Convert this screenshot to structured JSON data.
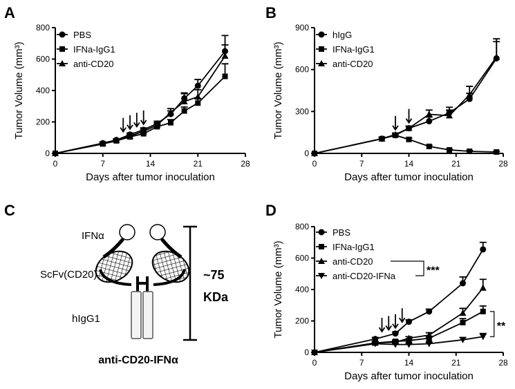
{
  "chart_data": [
    {
      "type": "line",
      "panel_label": "A",
      "x_label": "Days after tumor inoculation",
      "y_label": "Tumor Volume (mm³)",
      "x": [
        0,
        7,
        9,
        11,
        13,
        15,
        17,
        19,
        21,
        25
      ],
      "xlim": [
        0,
        28
      ],
      "xticks": [
        0,
        7,
        14,
        21,
        28
      ],
      "ylim": [
        0,
        800
      ],
      "yticks": [
        0,
        200,
        400,
        600,
        800
      ],
      "dose_days": [
        10,
        11,
        12,
        13
      ],
      "series": [
        {
          "name": "PBS",
          "color": "#000000",
          "marker": "circle",
          "values": [
            0,
            65,
            85,
            120,
            150,
            190,
            250,
            350,
            430,
            650
          ],
          "errors": [
            0,
            8,
            8,
            10,
            12,
            15,
            20,
            35,
            40,
            100
          ]
        },
        {
          "name": "IFNa-IgG1",
          "color": "#000000",
          "marker": "square",
          "values": [
            0,
            60,
            80,
            105,
            125,
            170,
            195,
            270,
            320,
            490
          ],
          "errors": [
            0,
            8,
            8,
            10,
            10,
            15,
            20,
            25,
            30,
            80
          ]
        },
        {
          "name": "anti-CD20",
          "color": "#000000",
          "marker": "triangle-up",
          "values": [
            0,
            65,
            85,
            110,
            140,
            180,
            260,
            330,
            360,
            620
          ],
          "errors": [
            0,
            8,
            8,
            10,
            12,
            15,
            25,
            50,
            45,
            70
          ]
        }
      ]
    },
    {
      "type": "line",
      "panel_label": "B",
      "x_label": "Days after tumor inoculation",
      "y_label": "Tumor Volume (mm³)",
      "x": [
        0,
        10,
        12,
        14,
        17,
        20,
        23,
        27
      ],
      "xlim": [
        0,
        28
      ],
      "xticks": [
        0,
        7,
        14,
        21,
        28
      ],
      "ylim": [
        0,
        900
      ],
      "yticks": [
        0,
        300,
        600,
        900
      ],
      "dose_days": [
        12,
        14
      ],
      "series": [
        {
          "name": "hIgG",
          "color": "#000000",
          "marker": "circle",
          "values": [
            0,
            105,
            130,
            180,
            230,
            290,
            390,
            680
          ],
          "errors": [
            0,
            10,
            10,
            15,
            30,
            40,
            40,
            120
          ]
        },
        {
          "name": "IFNa-IgG1",
          "color": "#000000",
          "marker": "square",
          "values": [
            0,
            105,
            130,
            100,
            50,
            25,
            15,
            10
          ],
          "errors": [
            0,
            10,
            10,
            10,
            8,
            5,
            5,
            5
          ]
        },
        {
          "name": "anti-CD20",
          "color": "#000000",
          "marker": "triangle-up",
          "values": [
            0,
            105,
            135,
            180,
            280,
            270,
            420,
            690
          ],
          "errors": [
            0,
            10,
            10,
            15,
            30,
            40,
            60,
            130
          ]
        }
      ]
    },
    {
      "type": "line",
      "panel_label": "D",
      "x_label": "Days after tumor inoculation",
      "y_label": "Tumor Volume (mm³)",
      "x": [
        0,
        9,
        12,
        14,
        17,
        22,
        25
      ],
      "xlim": [
        0,
        28
      ],
      "xticks": [
        0,
        7,
        14,
        21,
        28
      ],
      "ylim": [
        0,
        800
      ],
      "yticks": [
        0,
        200,
        400,
        600,
        800
      ],
      "dose_days": [
        10,
        11,
        12,
        13
      ],
      "annotations": [
        "***",
        "**"
      ],
      "series": [
        {
          "name": "PBS",
          "color": "#000000",
          "marker": "circle",
          "values": [
            0,
            85,
            120,
            195,
            260,
            440,
            655
          ],
          "errors": [
            0,
            10,
            10,
            12,
            15,
            40,
            45
          ]
        },
        {
          "name": "IFNa-IgG1",
          "color": "#000000",
          "marker": "square",
          "values": [
            0,
            60,
            70,
            75,
            90,
            190,
            260
          ],
          "errors": [
            0,
            8,
            8,
            10,
            12,
            25,
            35
          ]
        },
        {
          "name": "anti-CD20",
          "color": "#000000",
          "marker": "triangle-up",
          "values": [
            0,
            60,
            65,
            90,
            110,
            250,
            410
          ],
          "errors": [
            0,
            8,
            8,
            10,
            15,
            30,
            55
          ]
        },
        {
          "name": "anti-CD20-IFNa",
          "color": "#000000",
          "marker": "triangle-down",
          "values": [
            0,
            55,
            50,
            50,
            55,
            80,
            100
          ],
          "errors": [
            0,
            8,
            8,
            8,
            8,
            15,
            20
          ]
        }
      ]
    }
  ],
  "diagram": {
    "panel_label": "C",
    "ifn": "IFNα",
    "scfv": "ScFv(CD20)",
    "fc": "hIgG1",
    "size": "~75",
    "unit": "KDa",
    "name": "anti-CD20-IFNα"
  }
}
